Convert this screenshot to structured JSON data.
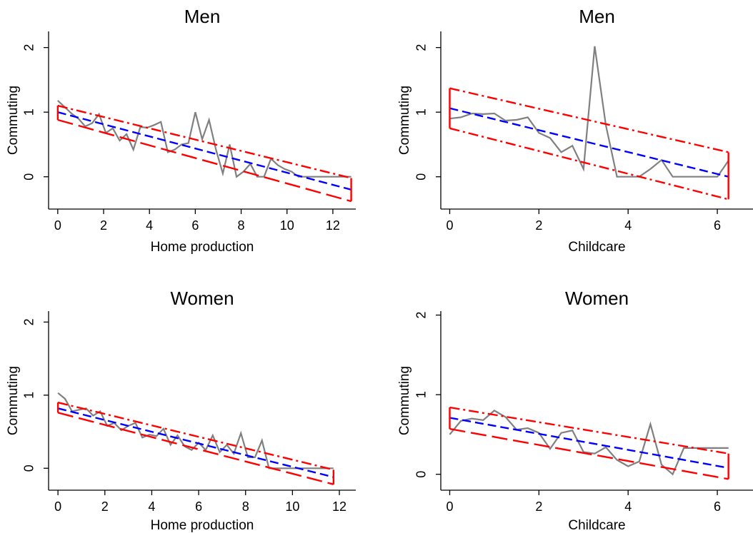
{
  "chart_data": [
    {
      "type": "line",
      "title": "Men",
      "xlabel": "Home production",
      "ylabel": "Commuting",
      "xlim": [
        -0.4,
        13
      ],
      "ylim": [
        -0.5,
        2.25
      ],
      "xticks": [
        0,
        2,
        4,
        6,
        8,
        10,
        12
      ],
      "yticks": [
        0,
        1,
        2
      ],
      "series": [
        {
          "role": "observed",
          "color": "#808080",
          "style": "solid",
          "x": [
            0,
            0.3,
            0.6,
            0.9,
            1.2,
            1.5,
            1.8,
            2.1,
            2.4,
            2.7,
            3.0,
            3.3,
            3.6,
            3.9,
            4.2,
            4.5,
            4.8,
            5.1,
            5.4,
            5.7,
            6.0,
            6.3,
            6.6,
            6.9,
            7.2,
            7.5,
            7.8,
            8.1,
            8.4,
            8.7,
            9.0,
            9.3,
            9.6,
            9.9,
            10.2,
            10.5,
            10.8,
            11.1,
            11.4,
            11.7,
            12.0,
            12.3,
            12.8
          ],
          "y": [
            1.18,
            1.08,
            0.98,
            0.9,
            0.78,
            0.83,
            0.97,
            0.68,
            0.75,
            0.56,
            0.66,
            0.42,
            0.77,
            0.76,
            0.8,
            0.85,
            0.38,
            0.42,
            0.5,
            0.52,
            1.0,
            0.58,
            0.88,
            0.42,
            0.05,
            0.5,
            0.0,
            0.08,
            0.2,
            0.0,
            0.0,
            0.28,
            0.18,
            0.12,
            0.08,
            0.0,
            0.0,
            0.0,
            0.0,
            0.0,
            0.0,
            0.0,
            0.0
          ]
        },
        {
          "role": "fit",
          "color": "#0000ff",
          "style": "dashed",
          "x": [
            0,
            12.8
          ],
          "y": [
            1.0,
            -0.2
          ]
        },
        {
          "role": "ci_upper",
          "color": "#ff0000",
          "style": "dashdot",
          "x": [
            0,
            12.8
          ],
          "y": [
            1.1,
            -0.02
          ]
        },
        {
          "role": "ci_lower",
          "color": "#ff0000",
          "style": "longdash",
          "x": [
            0,
            12.8
          ],
          "y": [
            0.88,
            -0.38
          ]
        }
      ]
    },
    {
      "type": "line",
      "title": "Men",
      "xlabel": "Childcare",
      "ylabel": "Commuting",
      "xlim": [
        -0.2,
        6.8
      ],
      "ylim": [
        -0.5,
        2.25
      ],
      "xticks": [
        0,
        2,
        4,
        6
      ],
      "yticks": [
        0,
        1,
        2
      ],
      "series": [
        {
          "role": "observed",
          "color": "#808080",
          "style": "solid",
          "x": [
            0,
            0.25,
            0.5,
            0.75,
            1.0,
            1.25,
            1.5,
            1.75,
            2.0,
            2.25,
            2.5,
            2.75,
            3.0,
            3.25,
            3.5,
            3.75,
            4.0,
            4.25,
            4.5,
            4.75,
            5.0,
            5.25,
            5.5,
            5.75,
            6.0,
            6.25
          ],
          "y": [
            0.9,
            0.92,
            0.98,
            0.97,
            0.98,
            0.87,
            0.88,
            0.92,
            0.68,
            0.6,
            0.38,
            0.48,
            0.12,
            2.02,
            0.8,
            0.0,
            0.0,
            0.0,
            0.12,
            0.26,
            0.0,
            0.0,
            0.0,
            0.0,
            0.0,
            0.25
          ]
        },
        {
          "role": "fit",
          "color": "#0000ff",
          "style": "dashed",
          "x": [
            0,
            6.25
          ],
          "y": [
            1.06,
            0.0
          ]
        },
        {
          "role": "ci_upper",
          "color": "#ff0000",
          "style": "dashdot",
          "x": [
            0,
            6.25
          ],
          "y": [
            1.37,
            0.38
          ]
        },
        {
          "role": "ci_lower",
          "color": "#ff0000",
          "style": "dashdot",
          "x": [
            0,
            6.25
          ],
          "y": [
            0.75,
            -0.35
          ]
        }
      ]
    },
    {
      "type": "line",
      "title": "Women",
      "xlabel": "Home production",
      "ylabel": "Commuting",
      "xlim": [
        -0.4,
        12.7
      ],
      "ylim": [
        -0.3,
        2.15
      ],
      "xticks": [
        0,
        2,
        4,
        6,
        8,
        10,
        12
      ],
      "yticks": [
        0,
        1,
        2
      ],
      "series": [
        {
          "role": "observed",
          "color": "#808080",
          "style": "solid",
          "x": [
            0,
            0.3,
            0.6,
            0.9,
            1.2,
            1.5,
            1.8,
            2.1,
            2.4,
            2.7,
            3.0,
            3.3,
            3.6,
            3.9,
            4.2,
            4.5,
            4.8,
            5.1,
            5.4,
            5.7,
            6.0,
            6.3,
            6.6,
            6.9,
            7.2,
            7.5,
            7.8,
            8.1,
            8.4,
            8.7,
            9.0,
            9.3,
            9.6,
            9.9,
            10.2,
            10.5,
            10.8,
            11.1,
            11.4,
            11.75
          ],
          "y": [
            1.03,
            0.95,
            0.78,
            0.8,
            0.82,
            0.72,
            0.78,
            0.58,
            0.62,
            0.52,
            0.58,
            0.62,
            0.42,
            0.46,
            0.44,
            0.54,
            0.32,
            0.45,
            0.3,
            0.25,
            0.35,
            0.25,
            0.45,
            0.22,
            0.32,
            0.2,
            0.48,
            0.15,
            0.15,
            0.38,
            0.0,
            0.0,
            0.0,
            0.0,
            0.0,
            0.0,
            0.0,
            0.0,
            0.0,
            0.0
          ]
        },
        {
          "role": "fit",
          "color": "#0000ff",
          "style": "dashed",
          "x": [
            0,
            11.75
          ],
          "y": [
            0.82,
            -0.12
          ]
        },
        {
          "role": "ci_upper",
          "color": "#ff0000",
          "style": "dashdot",
          "x": [
            0,
            11.75
          ],
          "y": [
            0.9,
            -0.02
          ]
        },
        {
          "role": "ci_lower",
          "color": "#ff0000",
          "style": "longdash",
          "x": [
            0,
            11.75
          ],
          "y": [
            0.76,
            -0.22
          ]
        }
      ]
    },
    {
      "type": "line",
      "title": "Women",
      "xlabel": "Childcare",
      "ylabel": "Commuting",
      "xlim": [
        -0.2,
        6.8
      ],
      "ylim": [
        -0.2,
        2.05
      ],
      "xticks": [
        0,
        2,
        4,
        6
      ],
      "yticks": [
        0,
        1,
        2
      ],
      "series": [
        {
          "role": "observed",
          "color": "#808080",
          "style": "solid",
          "x": [
            0,
            0.25,
            0.5,
            0.75,
            1.0,
            1.25,
            1.5,
            1.75,
            2.0,
            2.25,
            2.5,
            2.75,
            3.0,
            3.25,
            3.5,
            3.75,
            4.0,
            4.25,
            4.5,
            4.75,
            5.0,
            5.25,
            5.5,
            5.75,
            6.0,
            6.25
          ],
          "y": [
            0.5,
            0.67,
            0.7,
            0.68,
            0.8,
            0.72,
            0.56,
            0.58,
            0.52,
            0.32,
            0.52,
            0.55,
            0.28,
            0.26,
            0.34,
            0.18,
            0.1,
            0.16,
            0.63,
            0.12,
            0.0,
            0.33,
            0.33,
            0.33,
            0.33,
            0.33
          ]
        },
        {
          "role": "fit",
          "color": "#0000ff",
          "style": "dashed",
          "x": [
            0,
            6.25
          ],
          "y": [
            0.71,
            0.08
          ]
        },
        {
          "role": "ci_upper",
          "color": "#ff0000",
          "style": "dashdot",
          "x": [
            0,
            6.25
          ],
          "y": [
            0.84,
            0.26
          ]
        },
        {
          "role": "ci_lower",
          "color": "#ff0000",
          "style": "longdash",
          "x": [
            0,
            6.25
          ],
          "y": [
            0.57,
            -0.06
          ]
        }
      ]
    }
  ]
}
